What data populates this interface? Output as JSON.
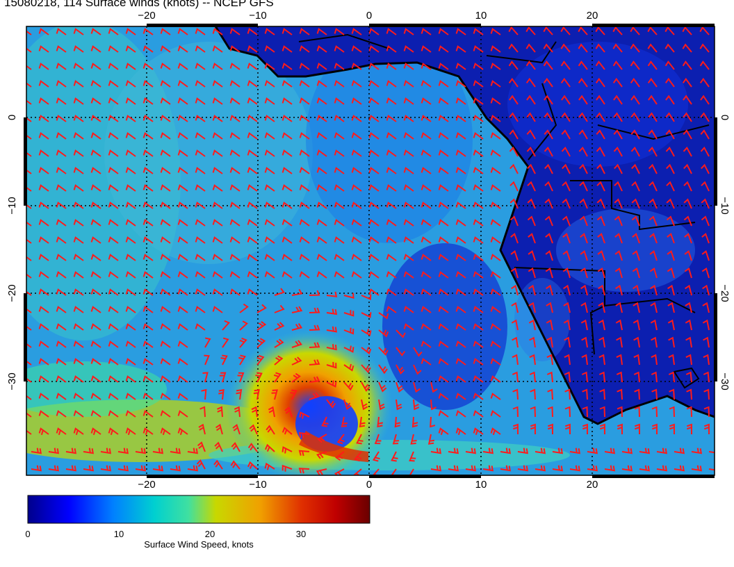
{
  "title": "15080218, 114 Surface winds (knots) -- NCEP GFS",
  "map": {
    "lon_ticks": [
      "−20",
      "−10",
      "0",
      "10",
      "20"
    ],
    "lat_ticks": [
      "0",
      "−10",
      "−20",
      "−30"
    ],
    "lon_values": [
      -20,
      -10,
      0,
      10,
      20
    ],
    "lat_values": [
      0,
      -10,
      -20,
      -30
    ],
    "lon_range": [
      -30,
      32
    ],
    "lat_range": [
      -41,
      10
    ],
    "grid": true,
    "wind_barb_color": "#ff1a1a",
    "coastline_color": "#000000"
  },
  "colorbar": {
    "ticks": [
      "0",
      "10",
      "20",
      "30"
    ],
    "tick_values": [
      0,
      10,
      20,
      30
    ],
    "range": [
      0,
      38
    ],
    "label": "Surface Wind Speed, knots",
    "colors": [
      "#00008c",
      "#0000ff",
      "#0080ff",
      "#00d0d0",
      "#40e0a0",
      "#c8d800",
      "#f0a000",
      "#e03000",
      "#c00000",
      "#6a0000"
    ]
  }
}
